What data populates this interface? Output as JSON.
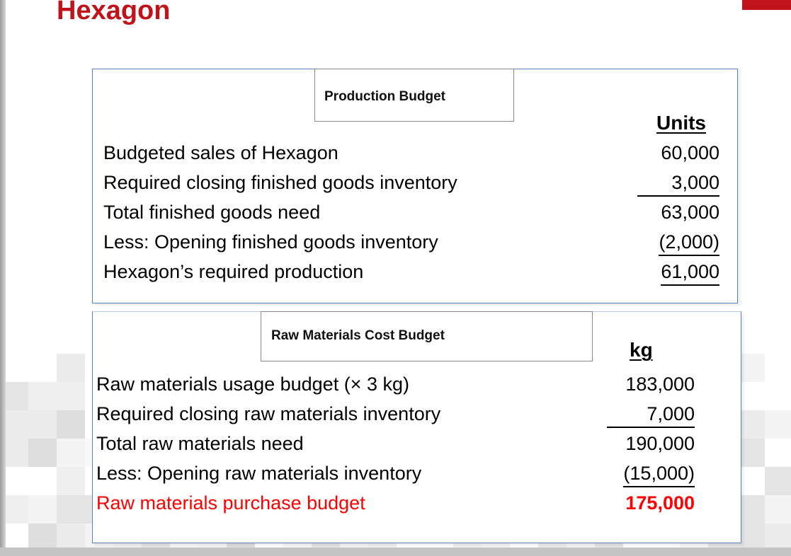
{
  "slide": {
    "title": "Hexagon",
    "colors": {
      "accent": "#c0141b",
      "panel_border": "#5a82be",
      "highlight": "#ff0000"
    }
  },
  "production_budget": {
    "caption": "Production Budget",
    "column_header": "Units",
    "rows": [
      {
        "label": "Budgeted sales of Hexagon",
        "value": "60,000"
      },
      {
        "label": "Required closing finished goods inventory",
        "value": "3,000"
      },
      {
        "label": "Total finished goods need",
        "value": "63,000"
      },
      {
        "label": "Less: Opening finished goods inventory",
        "value": "(2,000)"
      },
      {
        "label": "Hexagon’s required production",
        "value": "61,000"
      }
    ]
  },
  "raw_materials_budget": {
    "caption": "Raw Materials Cost Budget",
    "column_header": "kg",
    "rows": [
      {
        "label": "Raw materials usage budget (× 3 kg)",
        "value": "183,000"
      },
      {
        "label": "Required closing raw materials inventory",
        "value": "7,000"
      },
      {
        "label": "Total raw materials need",
        "value": "190,000"
      },
      {
        "label": "Less: Opening raw materials inventory",
        "value": "(15,000)"
      },
      {
        "label": "Raw materials purchase budget",
        "value": "175,000"
      }
    ]
  }
}
